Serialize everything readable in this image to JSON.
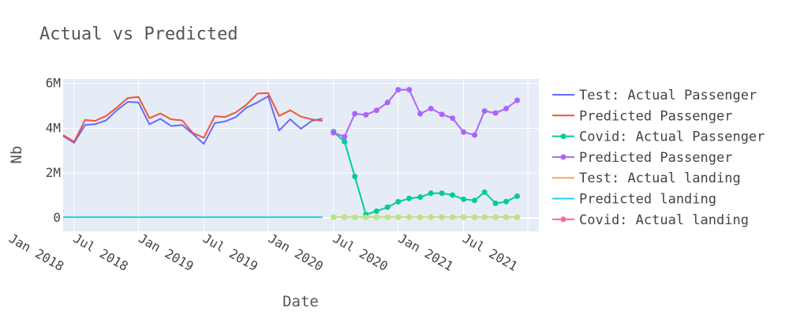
{
  "chart_data": {
    "type": "line",
    "title": "Actual vs Predicted",
    "xlabel": "Date",
    "ylabel": "Nb",
    "ylim": [
      -600000,
      6200000
    ],
    "xlim": [
      "2017-12-01",
      "2021-08-01"
    ],
    "yticks": [
      {
        "value": 0,
        "label": "0"
      },
      {
        "value": 2000000,
        "label": "2M"
      },
      {
        "value": 4000000,
        "label": "4M"
      },
      {
        "value": 6000000,
        "label": "6M"
      }
    ],
    "xticks": [
      {
        "value": "2018-01-01",
        "label": "Jan 2018"
      },
      {
        "value": "2018-07-01",
        "label": "Jul 2018"
      },
      {
        "value": "2019-01-01",
        "label": "Jan 2019"
      },
      {
        "value": "2019-07-01",
        "label": "Jul 2019"
      },
      {
        "value": "2020-01-01",
        "label": "Jan 2020"
      },
      {
        "value": "2020-07-01",
        "label": "Jul 2020"
      },
      {
        "value": "2021-01-01",
        "label": "Jan 2021"
      },
      {
        "value": "2021-07-01",
        "label": "Jul 2021"
      }
    ],
    "grid": true,
    "legend": "right",
    "plot_bg": "#e5ecf6",
    "series": [
      {
        "name": "Test: Actual Passenger",
        "color": "#636efa",
        "markers": false,
        "x": [
          "2017-12-01",
          "2018-01-01",
          "2018-02-01",
          "2018-03-01",
          "2018-04-01",
          "2018-05-01",
          "2018-06-01",
          "2018-07-01",
          "2018-08-01",
          "2018-09-01",
          "2018-10-01",
          "2018-11-01",
          "2018-12-01",
          "2019-01-01",
          "2019-02-01",
          "2019-03-01",
          "2019-04-01",
          "2019-05-01",
          "2019-06-01",
          "2019-07-01",
          "2019-08-01",
          "2019-09-01",
          "2019-10-01",
          "2019-11-01",
          "2019-12-01"
        ],
        "y": [
          3650000,
          3350000,
          4150000,
          4180000,
          4350000,
          4800000,
          5180000,
          5150000,
          4180000,
          4420000,
          4100000,
          4150000,
          3750000,
          3300000,
          4230000,
          4300000,
          4500000,
          4920000,
          5150000,
          5430000,
          3900000,
          4400000,
          3980000,
          4330000,
          4430000
        ]
      },
      {
        "name": "Predicted Passenger",
        "color": "#ef553b",
        "markers": false,
        "x": [
          "2017-12-01",
          "2018-01-01",
          "2018-02-01",
          "2018-03-01",
          "2018-04-01",
          "2018-05-01",
          "2018-06-01",
          "2018-07-01",
          "2018-08-01",
          "2018-09-01",
          "2018-10-01",
          "2018-11-01",
          "2018-12-01",
          "2019-01-01",
          "2019-02-01",
          "2019-03-01",
          "2019-04-01",
          "2019-05-01",
          "2019-06-01",
          "2019-07-01",
          "2019-08-01",
          "2019-09-01",
          "2019-10-01",
          "2019-11-01",
          "2019-12-01"
        ],
        "y": [
          3700000,
          3400000,
          4370000,
          4330000,
          4550000,
          4920000,
          5350000,
          5400000,
          4450000,
          4660000,
          4400000,
          4350000,
          3790000,
          3580000,
          4540000,
          4500000,
          4710000,
          5050000,
          5550000,
          5570000,
          4550000,
          4800000,
          4520000,
          4400000,
          4330000
        ]
      },
      {
        "name": "Covid: Actual Passenger",
        "color": "#00cc96",
        "markers": true,
        "x": [
          "2020-01-01",
          "2020-02-01",
          "2020-03-01",
          "2020-04-01",
          "2020-05-01",
          "2020-06-01",
          "2020-07-01",
          "2020-08-01",
          "2020-09-01",
          "2020-10-01",
          "2020-11-01",
          "2020-12-01",
          "2021-01-01",
          "2021-02-01",
          "2021-03-01",
          "2021-04-01",
          "2021-05-01",
          "2021-06-01"
        ],
        "y": [
          3850000,
          3400000,
          1850000,
          150000,
          300000,
          480000,
          720000,
          870000,
          930000,
          1100000,
          1100000,
          1020000,
          830000,
          780000,
          1150000,
          650000,
          730000,
          970000
        ]
      },
      {
        "name": "Predicted Passenger",
        "color": "#ab63fa",
        "markers": true,
        "x": [
          "2020-01-01",
          "2020-02-01",
          "2020-03-01",
          "2020-04-01",
          "2020-05-01",
          "2020-06-01",
          "2020-07-01",
          "2020-08-01",
          "2020-09-01",
          "2020-10-01",
          "2020-11-01",
          "2020-12-01",
          "2021-01-01",
          "2021-02-01",
          "2021-03-01",
          "2021-04-01",
          "2021-05-01",
          "2021-06-01"
        ],
        "y": [
          3800000,
          3620000,
          4650000,
          4600000,
          4800000,
          5150000,
          5720000,
          5720000,
          4650000,
          4880000,
          4620000,
          4450000,
          3830000,
          3700000,
          4770000,
          4680000,
          4880000,
          5250000
        ]
      },
      {
        "name": "Test: Actual landing",
        "color": "#ffa15a",
        "markers": false,
        "x": [
          "2017-12-01",
          "2019-12-01"
        ],
        "y": [
          30000,
          30000
        ]
      },
      {
        "name": "Predicted landing",
        "color": "#19d3f3",
        "markers": false,
        "x": [
          "2017-12-01",
          "2019-12-01"
        ],
        "y": [
          30000,
          30000
        ]
      },
      {
        "name": "Covid: Actual landing",
        "color": "#ff6692",
        "markers": true,
        "x": [
          "2020-01-01",
          "2020-02-01",
          "2020-03-01",
          "2020-04-01",
          "2020-05-01",
          "2020-06-01",
          "2020-07-01",
          "2020-08-01",
          "2020-09-01",
          "2020-10-01",
          "2020-11-01",
          "2020-12-01",
          "2021-01-01",
          "2021-02-01",
          "2021-03-01",
          "2021-04-01",
          "2021-05-01",
          "2021-06-01"
        ],
        "y": [
          30000,
          30000,
          30000,
          30000,
          30000,
          30000,
          30000,
          30000,
          30000,
          30000,
          30000,
          30000,
          30000,
          30000,
          30000,
          30000,
          30000,
          30000
        ]
      },
      {
        "name": "",
        "color": "#b6e880",
        "markers": true,
        "x": [
          "2020-01-01",
          "2020-02-01",
          "2020-03-01",
          "2020-04-01",
          "2020-05-01",
          "2020-06-01",
          "2020-07-01",
          "2020-08-01",
          "2020-09-01",
          "2020-10-01",
          "2020-11-01",
          "2020-12-01",
          "2021-01-01",
          "2021-02-01",
          "2021-03-01",
          "2021-04-01",
          "2021-05-01",
          "2021-06-01"
        ],
        "y": [
          30000,
          30000,
          30000,
          30000,
          30000,
          30000,
          30000,
          30000,
          30000,
          30000,
          30000,
          30000,
          30000,
          30000,
          30000,
          30000,
          30000,
          30000
        ]
      }
    ]
  }
}
